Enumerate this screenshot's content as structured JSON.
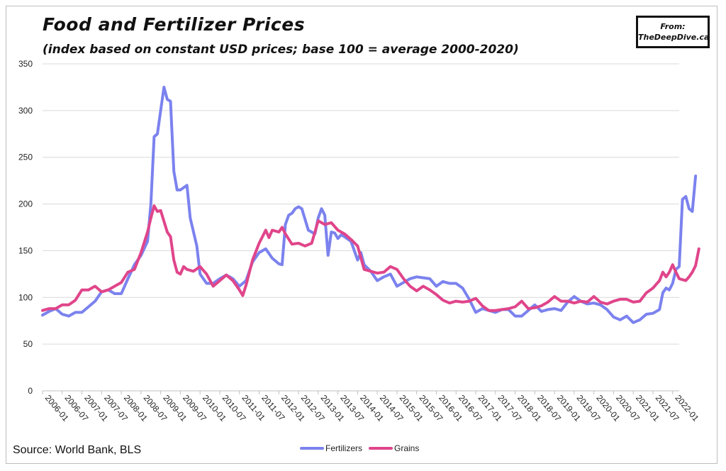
{
  "header": {
    "title": "Food and Fertilizer Prices",
    "subtitle": "(index based on constant USD prices; base 100 = average 2000-2020)"
  },
  "badge": {
    "line1": "From:",
    "line2": "TheDeepDive.ca"
  },
  "footer": {
    "source": "Source: World Bank, BLS"
  },
  "chart_data": {
    "type": "line",
    "title": "Food and Fertilizer Prices",
    "subtitle": "(index based on constant USD prices; base 100 = average 2000-2020)",
    "xlabel": "",
    "ylabel": "",
    "ylim": [
      0,
      350
    ],
    "yticks": [
      0,
      50,
      100,
      150,
      200,
      250,
      300,
      350
    ],
    "xticks": [
      "2006-01",
      "2006-07",
      "2007-01",
      "2007-07",
      "2008-01",
      "2008-07",
      "2009-01",
      "2009-07",
      "2010-01",
      "2010-07",
      "2011-01",
      "2011-07",
      "2012-01",
      "2012-07",
      "2013-01",
      "2013-07",
      "2014-01",
      "2014-07",
      "2015-01",
      "2015-07",
      "2016-01",
      "2016-07",
      "2017-01",
      "2017-07",
      "2018-01",
      "2018-07",
      "2019-01",
      "2019-07",
      "2020-01",
      "2020-07",
      "2021-01",
      "2021-07",
      "2022-01"
    ],
    "x_start": "2006-01",
    "x_end": "2022-03",
    "grid": true,
    "legend_position": "bottom-center",
    "series": [
      {
        "name": "Fertilizers",
        "color": "#7b82ee",
        "points": [
          [
            "2006-01",
            81
          ],
          [
            "2006-03",
            85
          ],
          [
            "2006-05",
            88
          ],
          [
            "2006-07",
            82
          ],
          [
            "2006-09",
            80
          ],
          [
            "2006-11",
            84
          ],
          [
            "2007-01",
            84
          ],
          [
            "2007-03",
            90
          ],
          [
            "2007-05",
            96
          ],
          [
            "2007-07",
            106
          ],
          [
            "2007-09",
            108
          ],
          [
            "2007-11",
            104
          ],
          [
            "2008-01",
            104
          ],
          [
            "2008-03",
            120
          ],
          [
            "2008-05",
            135
          ],
          [
            "2008-07",
            145
          ],
          [
            "2008-09",
            160
          ],
          [
            "2008-10",
            200
          ],
          [
            "2008-11",
            272
          ],
          [
            "2008-12",
            275
          ],
          [
            "2009-01",
            300
          ],
          [
            "2009-02",
            325
          ],
          [
            "2009-03",
            312
          ],
          [
            "2009-04",
            310
          ],
          [
            "2009-05",
            235
          ],
          [
            "2009-06",
            215
          ],
          [
            "2009-07",
            215
          ],
          [
            "2009-09",
            220
          ],
          [
            "2009-10",
            185
          ],
          [
            "2009-12",
            155
          ],
          [
            "2010-01",
            125
          ],
          [
            "2010-03",
            115
          ],
          [
            "2010-05",
            115
          ],
          [
            "2010-07",
            120
          ],
          [
            "2010-09",
            124
          ],
          [
            "2010-11",
            120
          ],
          [
            "2011-01",
            112
          ],
          [
            "2011-03",
            118
          ],
          [
            "2011-05",
            138
          ],
          [
            "2011-07",
            148
          ],
          [
            "2011-09",
            152
          ],
          [
            "2011-11",
            142
          ],
          [
            "2012-01",
            136
          ],
          [
            "2012-02",
            135
          ],
          [
            "2012-03",
            178
          ],
          [
            "2012-04",
            188
          ],
          [
            "2012-05",
            190
          ],
          [
            "2012-06",
            195
          ],
          [
            "2012-07",
            197
          ],
          [
            "2012-08",
            195
          ],
          [
            "2012-10",
            172
          ],
          [
            "2012-11",
            170
          ],
          [
            "2012-12",
            168
          ],
          [
            "2013-01",
            185
          ],
          [
            "2013-02",
            195
          ],
          [
            "2013-03",
            188
          ],
          [
            "2013-04",
            145
          ],
          [
            "2013-05",
            170
          ],
          [
            "2013-06",
            169
          ],
          [
            "2013-07",
            163
          ],
          [
            "2013-08",
            167
          ],
          [
            "2013-09",
            165
          ],
          [
            "2013-11",
            160
          ],
          [
            "2014-01",
            140
          ],
          [
            "2014-02",
            148
          ],
          [
            "2014-03",
            135
          ],
          [
            "2014-05",
            128
          ],
          [
            "2014-07",
            118
          ],
          [
            "2014-09",
            122
          ],
          [
            "2014-11",
            125
          ],
          [
            "2015-01",
            112
          ],
          [
            "2015-03",
            116
          ],
          [
            "2015-05",
            120
          ],
          [
            "2015-07",
            122
          ],
          [
            "2015-09",
            121
          ],
          [
            "2015-11",
            120
          ],
          [
            "2016-01",
            112
          ],
          [
            "2016-03",
            117
          ],
          [
            "2016-05",
            115
          ],
          [
            "2016-07",
            115
          ],
          [
            "2016-09",
            110
          ],
          [
            "2016-11",
            98
          ],
          [
            "2017-01",
            84
          ],
          [
            "2017-03",
            88
          ],
          [
            "2017-05",
            86
          ],
          [
            "2017-07",
            84
          ],
          [
            "2017-09",
            87
          ],
          [
            "2017-11",
            87
          ],
          [
            "2018-01",
            80
          ],
          [
            "2018-03",
            80
          ],
          [
            "2018-05",
            86
          ],
          [
            "2018-07",
            92
          ],
          [
            "2018-09",
            85
          ],
          [
            "2018-11",
            87
          ],
          [
            "2019-01",
            88
          ],
          [
            "2019-03",
            86
          ],
          [
            "2019-05",
            95
          ],
          [
            "2019-07",
            101
          ],
          [
            "2019-09",
            96
          ],
          [
            "2019-11",
            93
          ],
          [
            "2020-01",
            94
          ],
          [
            "2020-03",
            92
          ],
          [
            "2020-05",
            87
          ],
          [
            "2020-07",
            79
          ],
          [
            "2020-09",
            76
          ],
          [
            "2020-11",
            80
          ],
          [
            "2021-01",
            73
          ],
          [
            "2021-03",
            76
          ],
          [
            "2021-05",
            82
          ],
          [
            "2021-07",
            83
          ],
          [
            "2021-09",
            87
          ],
          [
            "2021-10",
            105
          ],
          [
            "2021-11",
            110
          ],
          [
            "2021-12",
            108
          ],
          [
            "2022-01",
            115
          ],
          [
            "2022-02",
            130
          ],
          [
            "2022-03",
            133
          ],
          [
            "2022-04",
            205
          ],
          [
            "2022-05",
            208
          ],
          [
            "2022-06",
            195
          ],
          [
            "2022-07",
            192
          ],
          [
            "2022-08",
            230
          ]
        ]
      },
      {
        "name": "Grains",
        "color": "#e0458a",
        "points": [
          [
            "2006-01",
            86
          ],
          [
            "2006-03",
            88
          ],
          [
            "2006-05",
            88
          ],
          [
            "2006-07",
            92
          ],
          [
            "2006-09",
            92
          ],
          [
            "2006-11",
            97
          ],
          [
            "2007-01",
            108
          ],
          [
            "2007-03",
            108
          ],
          [
            "2007-05",
            112
          ],
          [
            "2007-07",
            106
          ],
          [
            "2007-09",
            108
          ],
          [
            "2007-11",
            112
          ],
          [
            "2008-01",
            116
          ],
          [
            "2008-03",
            127
          ],
          [
            "2008-05",
            130
          ],
          [
            "2008-07",
            148
          ],
          [
            "2008-09",
            170
          ],
          [
            "2008-10",
            185
          ],
          [
            "2008-11",
            198
          ],
          [
            "2008-12",
            192
          ],
          [
            "2009-01",
            193
          ],
          [
            "2009-03",
            170
          ],
          [
            "2009-04",
            165
          ],
          [
            "2009-05",
            140
          ],
          [
            "2009-06",
            127
          ],
          [
            "2009-07",
            125
          ],
          [
            "2009-08",
            133
          ],
          [
            "2009-09",
            130
          ],
          [
            "2009-11",
            128
          ],
          [
            "2010-01",
            133
          ],
          [
            "2010-03",
            125
          ],
          [
            "2010-05",
            112
          ],
          [
            "2010-07",
            118
          ],
          [
            "2010-09",
            124
          ],
          [
            "2010-11",
            118
          ],
          [
            "2011-01",
            108
          ],
          [
            "2011-02",
            102
          ],
          [
            "2011-03",
            113
          ],
          [
            "2011-05",
            140
          ],
          [
            "2011-07",
            158
          ],
          [
            "2011-09",
            172
          ],
          [
            "2011-10",
            164
          ],
          [
            "2011-11",
            172
          ],
          [
            "2012-01",
            170
          ],
          [
            "2012-02",
            175
          ],
          [
            "2012-03",
            168
          ],
          [
            "2012-05",
            157
          ],
          [
            "2012-07",
            158
          ],
          [
            "2012-09",
            155
          ],
          [
            "2012-11",
            158
          ],
          [
            "2013-01",
            182
          ],
          [
            "2013-03",
            178
          ],
          [
            "2013-05",
            180
          ],
          [
            "2013-07",
            172
          ],
          [
            "2013-09",
            168
          ],
          [
            "2013-11",
            162
          ],
          [
            "2014-01",
            155
          ],
          [
            "2014-03",
            130
          ],
          [
            "2014-05",
            128
          ],
          [
            "2014-07",
            126
          ],
          [
            "2014-09",
            127
          ],
          [
            "2014-11",
            133
          ],
          [
            "2015-01",
            130
          ],
          [
            "2015-03",
            120
          ],
          [
            "2015-05",
            112
          ],
          [
            "2015-07",
            107
          ],
          [
            "2015-09",
            112
          ],
          [
            "2015-11",
            108
          ],
          [
            "2016-01",
            103
          ],
          [
            "2016-03",
            97
          ],
          [
            "2016-05",
            94
          ],
          [
            "2016-07",
            96
          ],
          [
            "2016-09",
            95
          ],
          [
            "2016-11",
            96
          ],
          [
            "2017-01",
            99
          ],
          [
            "2017-03",
            91
          ],
          [
            "2017-05",
            86
          ],
          [
            "2017-07",
            86
          ],
          [
            "2017-09",
            87
          ],
          [
            "2017-11",
            88
          ],
          [
            "2018-01",
            90
          ],
          [
            "2018-03",
            96
          ],
          [
            "2018-05",
            88
          ],
          [
            "2018-07",
            89
          ],
          [
            "2018-09",
            91
          ],
          [
            "2018-11",
            95
          ],
          [
            "2019-01",
            101
          ],
          [
            "2019-03",
            96
          ],
          [
            "2019-05",
            96
          ],
          [
            "2019-07",
            94
          ],
          [
            "2019-09",
            96
          ],
          [
            "2019-11",
            95
          ],
          [
            "2020-01",
            101
          ],
          [
            "2020-03",
            95
          ],
          [
            "2020-05",
            93
          ],
          [
            "2020-07",
            96
          ],
          [
            "2020-09",
            98
          ],
          [
            "2020-11",
            98
          ],
          [
            "2021-01",
            95
          ],
          [
            "2021-03",
            96
          ],
          [
            "2021-05",
            105
          ],
          [
            "2021-07",
            110
          ],
          [
            "2021-09",
            118
          ],
          [
            "2021-10",
            127
          ],
          [
            "2021-11",
            122
          ],
          [
            "2021-12",
            127
          ],
          [
            "2022-01",
            135
          ],
          [
            "2022-02",
            127
          ],
          [
            "2022-03",
            120
          ],
          [
            "2022-05",
            118
          ],
          [
            "2022-06",
            122
          ],
          [
            "2022-07",
            127
          ],
          [
            "2022-08",
            134
          ],
          [
            "2022-09",
            152
          ]
        ]
      }
    ]
  }
}
